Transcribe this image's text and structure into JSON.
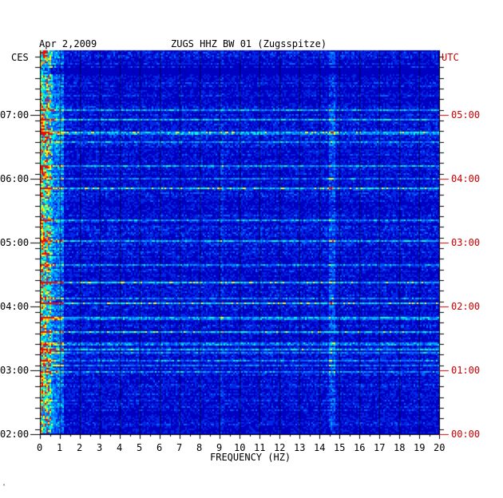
{
  "header": {
    "date": "Apr 2,2009",
    "station": "ZUGS HHZ BW 01 (Zugsspitze)",
    "left_tz": "CES",
    "right_tz": "UTC"
  },
  "chart_data": {
    "type": "heatmap",
    "title": "ZUGS HHZ BW 01 (Zugsspitze)",
    "subtitle": "Apr 2,2009",
    "xlabel": "FREQUENCY (HZ)",
    "ylabel_left": "CES",
    "ylabel_right": "UTC",
    "xlim": [
      0,
      20
    ],
    "x_ticks": [
      "0",
      "1",
      "2",
      "3",
      "4",
      "5",
      "6",
      "7",
      "8",
      "9",
      "10",
      "11",
      "12",
      "13",
      "14",
      "15",
      "16",
      "17",
      "18",
      "19",
      "20"
    ],
    "y_ticks_left": [
      "07:00",
      "06:00",
      "05:00",
      "04:00",
      "03:00",
      "02:00"
    ],
    "y_ticks_right": [
      "05:00",
      "04:00",
      "03:00",
      "02:00",
      "01:00",
      "00:00"
    ],
    "grid": true
  },
  "colors": {
    "background_blue": "#0000c8",
    "mid_blue": "#0050ff",
    "cyan": "#00c8ff",
    "yellow": "#ffff00",
    "red": "#ff0000",
    "axis": "#000000",
    "utc_text": "#cc0000"
  },
  "footer": {
    "mark": "ᵛ"
  }
}
